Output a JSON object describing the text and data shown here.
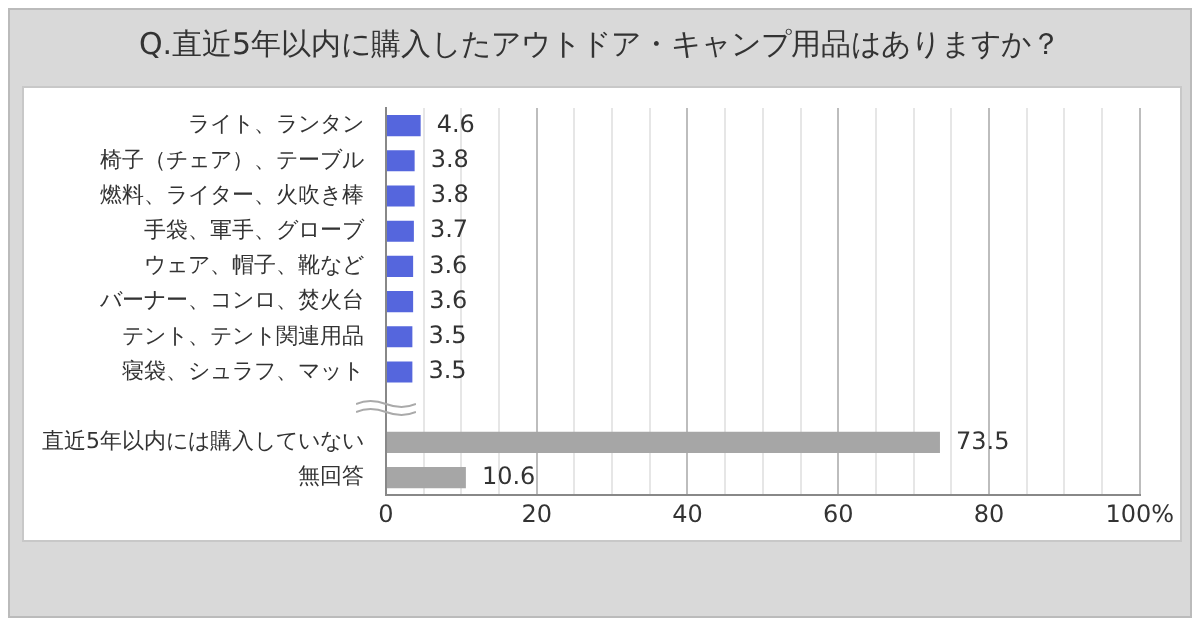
{
  "chart_data": {
    "type": "bar",
    "orientation": "horizontal",
    "title": "Q.直近5年以内に購入したアウトドア・キャンプ用品はありますか？",
    "categories": [
      "ライト、ランタン",
      "椅子（チェア）、テーブル",
      "燃料、ライター、火吹き棒",
      "手袋、軍手、グローブ",
      "ウェア、帽子、靴など",
      "バーナー、コンロ、焚火台",
      "テント、テント関連用品",
      "寝袋、シュラフ、マット",
      null,
      "直近5年以内には購入していない",
      "無回答"
    ],
    "values": [
      4.6,
      3.8,
      3.8,
      3.7,
      3.6,
      3.6,
      3.5,
      3.5,
      null,
      73.5,
      10.6
    ],
    "colors": [
      "#5566dd",
      "#5566dd",
      "#5566dd",
      "#5566dd",
      "#5566dd",
      "#5566dd",
      "#5566dd",
      "#5566dd",
      "#5566dd",
      "#a6a6a6",
      "#a6a6a6"
    ],
    "xlim": [
      0,
      100
    ],
    "xticks": [
      0,
      {
        "value": 5,
        "label": null
      },
      {
        "value": 10,
        "label": null
      },
      {
        "value": 15,
        "label": null
      },
      20,
      {
        "value": 25,
        "label": null
      },
      {
        "value": 30,
        "label": null
      },
      {
        "value": 35,
        "label": null
      },
      40,
      {
        "value": 45,
        "label": null
      },
      {
        "value": 50,
        "label": null
      },
      {
        "value": 55,
        "label": null
      },
      60,
      {
        "value": 65,
        "label": null
      },
      {
        "value": 70,
        "label": null
      },
      {
        "value": 75,
        "label": null
      },
      80,
      {
        "value": 85,
        "label": null
      },
      {
        "value": 90,
        "label": null
      },
      {
        "value": 95,
        "label": null
      },
      {
        "value": 100,
        "label": "100%"
      }
    ],
    "grid": true,
    "data_labels": true
  }
}
